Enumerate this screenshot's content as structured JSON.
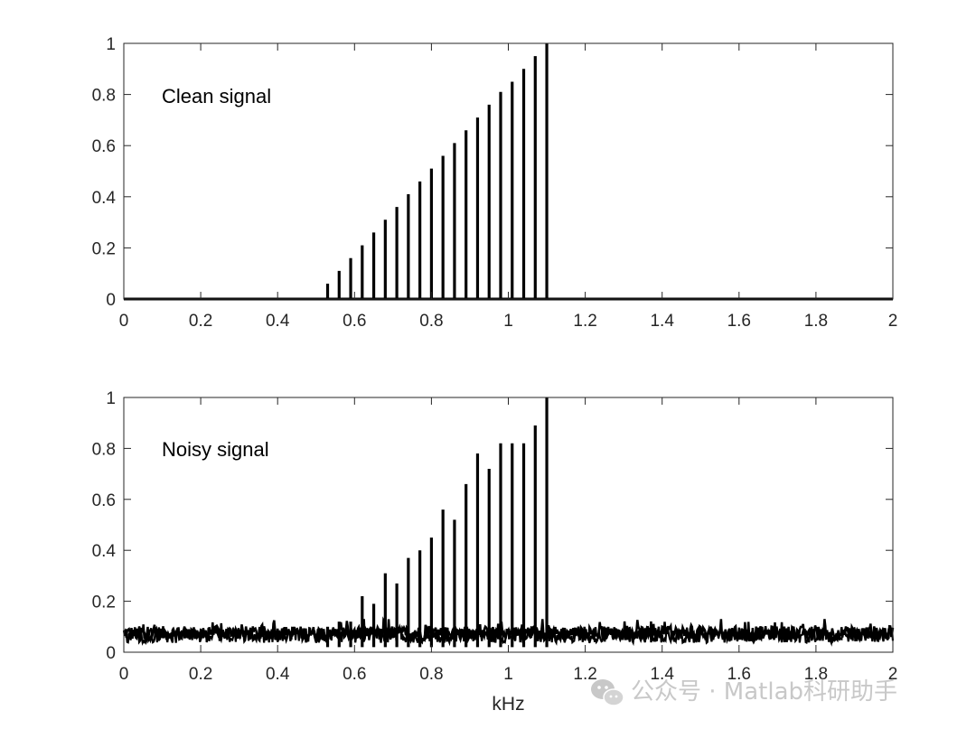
{
  "figure": {
    "watermark": "公众号 · Matlab科研助手",
    "watermark_icon": "wechat-icon",
    "axis_color": "#262626",
    "line_color": "#000000",
    "watermark_color": "#c8c8c8"
  },
  "chart_data": [
    {
      "type": "line",
      "title": "",
      "annotation": "Clean signal",
      "xlabel": "",
      "ylabel": "",
      "xlim": [
        0,
        2
      ],
      "ylim": [
        0,
        1
      ],
      "xticks": [
        "0",
        "0.2",
        "0.4",
        "0.6",
        "0.8",
        "1",
        "1.2",
        "1.4",
        "1.6",
        "1.8",
        "2"
      ],
      "yticks": [
        "0",
        "0.2",
        "0.4",
        "0.6",
        "0.8",
        "1"
      ],
      "grid": false,
      "series": [
        {
          "baseline": 0,
          "peaks_x": [
            0.53,
            0.56,
            0.59,
            0.62,
            0.65,
            0.68,
            0.71,
            0.74,
            0.77,
            0.8,
            0.83,
            0.86,
            0.89,
            0.92,
            0.95,
            0.98,
            1.01,
            1.04,
            1.07,
            1.1
          ],
          "peaks_y": [
            0.06,
            0.11,
            0.16,
            0.21,
            0.26,
            0.31,
            0.36,
            0.41,
            0.46,
            0.51,
            0.56,
            0.61,
            0.66,
            0.71,
            0.76,
            0.81,
            0.85,
            0.9,
            0.95,
            1.0
          ]
        }
      ]
    },
    {
      "type": "line",
      "title": "",
      "annotation": "Noisy signal",
      "xlabel": "kHz",
      "ylabel": "",
      "xlim": [
        0,
        2
      ],
      "ylim": [
        0,
        1
      ],
      "xticks": [
        "0",
        "0.2",
        "0.4",
        "0.6",
        "0.8",
        "1",
        "1.2",
        "1.4",
        "1.6",
        "1.8",
        "2"
      ],
      "yticks": [
        "0",
        "0.2",
        "0.4",
        "0.6",
        "0.8",
        "1"
      ],
      "grid": false,
      "series": [
        {
          "noise_floor_range": [
            0.02,
            0.13
          ],
          "peaks_x": [
            0.53,
            0.56,
            0.59,
            0.62,
            0.65,
            0.68,
            0.71,
            0.74,
            0.77,
            0.8,
            0.83,
            0.86,
            0.89,
            0.92,
            0.95,
            0.98,
            1.01,
            1.04,
            1.07,
            1.1
          ],
          "peaks_y": [
            0.1,
            0.12,
            0.12,
            0.22,
            0.19,
            0.31,
            0.27,
            0.37,
            0.4,
            0.45,
            0.56,
            0.52,
            0.66,
            0.78,
            0.72,
            0.82,
            0.82,
            0.82,
            0.89,
            1.0
          ]
        }
      ]
    }
  ]
}
